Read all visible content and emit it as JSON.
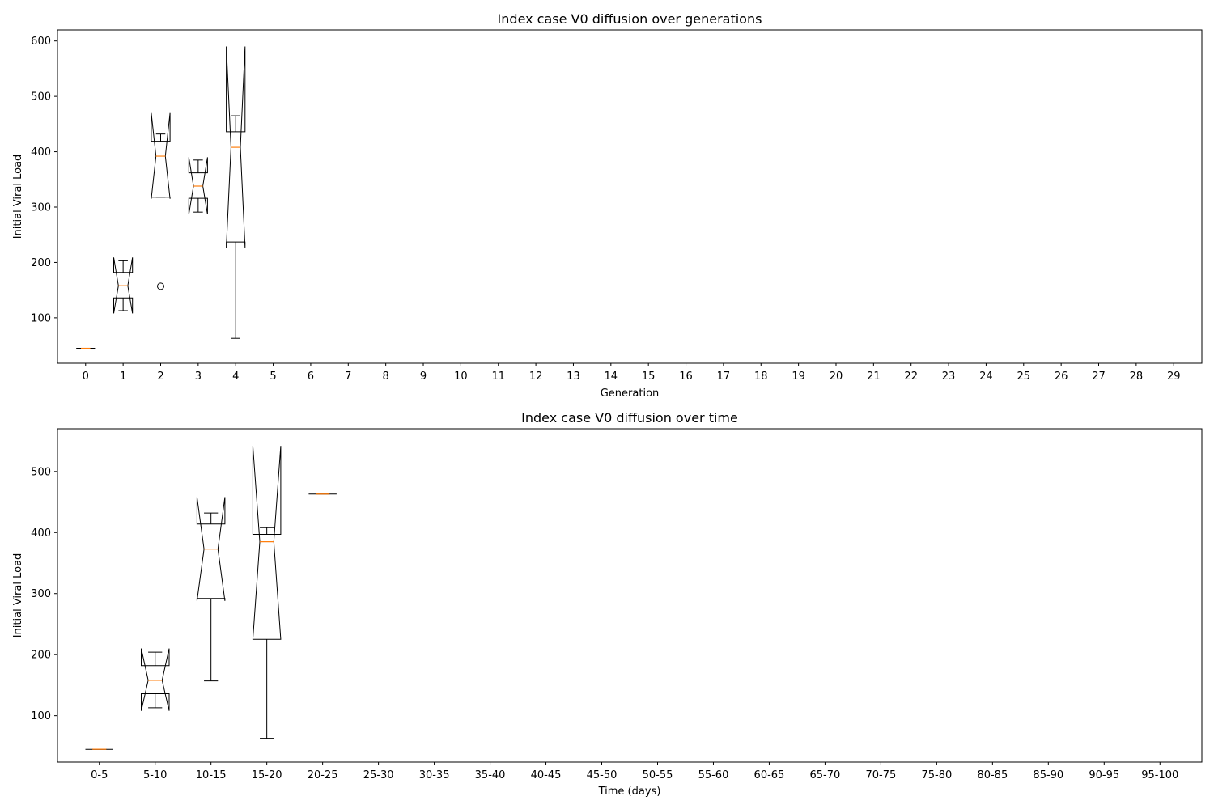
{
  "chart_data": [
    {
      "type": "boxplot",
      "notched": true,
      "title": "Index case V0 diffusion over generations",
      "xlabel": "Generation",
      "ylabel": "Initial Viral Load",
      "categories": [
        "0",
        "1",
        "2",
        "3",
        "4",
        "5",
        "6",
        "7",
        "8",
        "9",
        "10",
        "11",
        "12",
        "13",
        "14",
        "15",
        "16",
        "17",
        "18",
        "19",
        "20",
        "21",
        "22",
        "23",
        "24",
        "25",
        "26",
        "27",
        "28",
        "29"
      ],
      "ylim": [
        18,
        620
      ],
      "yticks": [
        100,
        200,
        300,
        400,
        500,
        600
      ],
      "boxes": [
        {
          "category": "0",
          "whislo": 45,
          "q1": 45,
          "median": 45,
          "q3": 45,
          "whishi": 45,
          "notch_lo": 45,
          "notch_hi": 45,
          "fliers": []
        },
        {
          "category": "1",
          "whislo": 113,
          "q1": 136,
          "median": 158,
          "q3": 182,
          "whishi": 203,
          "notch_lo": 108,
          "notch_hi": 209,
          "fliers": []
        },
        {
          "category": "2",
          "whislo": 318,
          "q1": 318,
          "median": 392,
          "q3": 419,
          "whishi": 432,
          "notch_lo": 315,
          "notch_hi": 470,
          "fliers": [
            157
          ]
        },
        {
          "category": "3",
          "whislo": 291,
          "q1": 316,
          "median": 338,
          "q3": 362,
          "whishi": 385,
          "notch_lo": 287,
          "notch_hi": 390,
          "fliers": []
        },
        {
          "category": "4",
          "whislo": 63,
          "q1": 237,
          "median": 408,
          "q3": 436,
          "whishi": 465,
          "notch_lo": 227,
          "notch_hi": 590,
          "fliers": []
        }
      ]
    },
    {
      "type": "boxplot",
      "notched": true,
      "title": "Index case V0 diffusion over time",
      "xlabel": "Time (days)",
      "ylabel": "Initial Viral Load",
      "categories": [
        "0-5",
        "5-10",
        "10-15",
        "15-20",
        "20-25",
        "25-30",
        "30-35",
        "35-40",
        "40-45",
        "45-50",
        "50-55",
        "55-60",
        "60-65",
        "65-70",
        "70-75",
        "75-80",
        "80-85",
        "85-90",
        "90-95",
        "95-100"
      ],
      "ylim": [
        24,
        570
      ],
      "yticks": [
        100,
        200,
        300,
        400,
        500
      ],
      "boxes": [
        {
          "category": "0-5",
          "whislo": 45,
          "q1": 45,
          "median": 45,
          "q3": 45,
          "whishi": 45,
          "notch_lo": 45,
          "notch_hi": 45,
          "fliers": []
        },
        {
          "category": "5-10",
          "whislo": 113,
          "q1": 136,
          "median": 158,
          "q3": 182,
          "whishi": 204,
          "notch_lo": 108,
          "notch_hi": 210,
          "fliers": []
        },
        {
          "category": "10-15",
          "whislo": 157,
          "q1": 292,
          "median": 373,
          "q3": 414,
          "whishi": 432,
          "notch_lo": 288,
          "notch_hi": 458,
          "fliers": []
        },
        {
          "category": "15-20",
          "whislo": 63,
          "q1": 225,
          "median": 385,
          "q3": 397,
          "whishi": 408,
          "notch_lo": 225,
          "notch_hi": 542,
          "fliers": []
        },
        {
          "category": "20-25",
          "whislo": 463,
          "q1": 463,
          "median": 463,
          "q3": 463,
          "whishi": 463,
          "notch_lo": 463,
          "notch_hi": 463,
          "fliers": []
        }
      ]
    }
  ]
}
